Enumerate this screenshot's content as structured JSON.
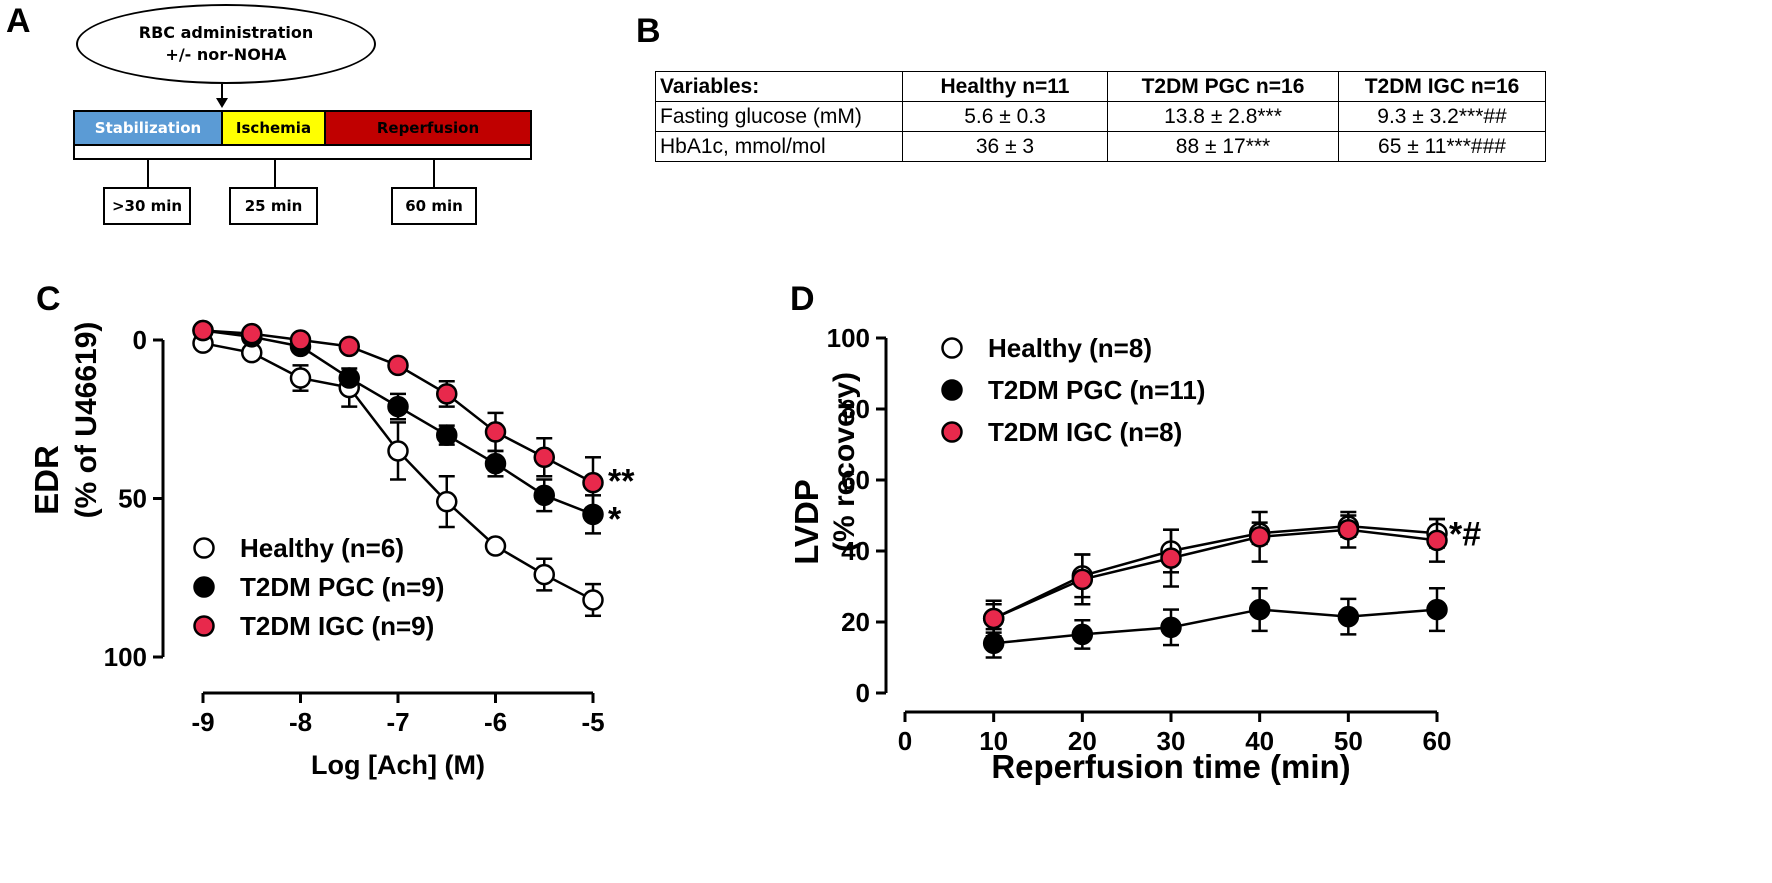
{
  "panels": {
    "a": "A",
    "b": "B",
    "c": "C",
    "d": "D"
  },
  "protocol": {
    "event_line1": "RBC administration",
    "event_line2": "+/- nor-NOHA",
    "phases": [
      "Stabilization",
      "Ischemia",
      "Reperfusion"
    ],
    "durations": [
      ">30 min",
      "25 min",
      "60 min"
    ],
    "colors": [
      "#5b9bd5",
      "#ffff00",
      "#c00000"
    ]
  },
  "table": {
    "headers": [
      "Variables:",
      "Healthy n=11",
      "T2DM PGC n=16",
      "T2DM IGC n=16"
    ],
    "rows": [
      [
        "Fasting glucose (mM)",
        "5.6 ± 0.3",
        "13.8 ± 2.8***",
        "9.3 ± 3.2***##"
      ],
      [
        "HbA1c, mmol/mol",
        "36 ± 3",
        "88 ± 17***",
        "65 ± 11***###"
      ]
    ]
  },
  "chart_data": [
    {
      "type": "line",
      "panel": "C",
      "xlabel": "Log [Ach] (M)",
      "ylabel": "EDR",
      "ylabel2": "(% of U46619)",
      "xlim": [
        -9,
        -5
      ],
      "ylim": [
        0,
        100
      ],
      "y_inverted": true,
      "xticks": [
        -9,
        -8,
        -7,
        -6,
        -5
      ],
      "yticks": [
        0,
        50,
        100
      ],
      "x": [
        -9,
        -8.5,
        -8,
        -7.5,
        -7,
        -6.5,
        -6,
        -5.5,
        -5
      ],
      "series": [
        {
          "name": "Healthy (n=6)",
          "fill": "#ffffff",
          "values": [
            1,
            4,
            12,
            15,
            35,
            51,
            65,
            74,
            82
          ],
          "errors": [
            0,
            0,
            4,
            6,
            9,
            8,
            0,
            5,
            5
          ]
        },
        {
          "name": "T2DM PGC (n=9)",
          "fill": "#000000",
          "values": [
            -3,
            -1,
            2,
            12,
            21,
            30,
            39,
            49,
            55
          ],
          "errors": [
            0,
            0,
            0,
            0,
            4,
            3,
            4,
            5,
            6
          ]
        },
        {
          "name": "T2DM IGC (n=9)",
          "fill": "#e8294c",
          "values": [
            -3,
            -2,
            0,
            2,
            8,
            17,
            29,
            37,
            45
          ],
          "errors": [
            0,
            0,
            0,
            0,
            0,
            4,
            6,
            6,
            8
          ]
        }
      ],
      "annotations": [
        {
          "text": "**",
          "series": 2
        },
        {
          "text": "*",
          "series": 1
        }
      ]
    },
    {
      "type": "line",
      "panel": "D",
      "xlabel": "Reperfusion time (min)",
      "ylabel": "LVDP",
      "ylabel2": "(% recovery)",
      "xlim": [
        0,
        60
      ],
      "ylim": [
        0,
        100
      ],
      "xticks": [
        0,
        10,
        20,
        30,
        40,
        50,
        60
      ],
      "yticks": [
        0,
        20,
        40,
        60,
        80,
        100
      ],
      "x": [
        10,
        20,
        30,
        40,
        50,
        60
      ],
      "series": [
        {
          "name": "Healthy (n=8)",
          "fill": "#ffffff",
          "values": [
            21,
            33,
            40,
            45,
            47,
            45
          ],
          "errors": [
            4,
            6,
            6,
            3,
            3,
            4
          ]
        },
        {
          "name": "T2DM PGC (n=11)",
          "fill": "#000000",
          "values": [
            14,
            16.5,
            18.5,
            23.5,
            21.5,
            23.5
          ],
          "errors": [
            4,
            4,
            5,
            6,
            5,
            6
          ]
        },
        {
          "name": "T2DM IGC (n=8)",
          "fill": "#e8294c",
          "values": [
            21,
            32,
            38,
            44,
            46,
            43
          ],
          "errors": [
            5,
            7,
            8,
            7,
            5,
            6
          ]
        }
      ],
      "annotations": [
        {
          "text": "*#",
          "series": 0
        }
      ]
    }
  ]
}
